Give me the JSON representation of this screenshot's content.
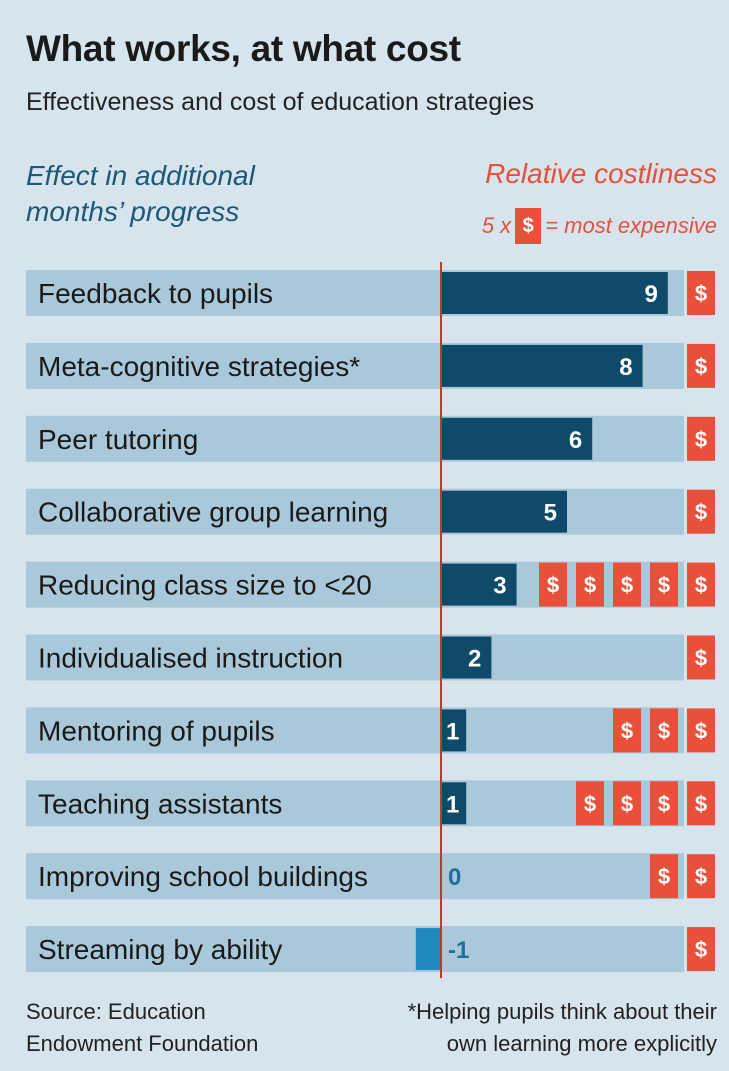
{
  "title": "What works, at what cost",
  "subtitle": "Effectiveness and cost of education strategies",
  "effect_header_line1": "Effect in additional",
  "effect_header_line2": "months’ progress",
  "cost_header": "Relative costliness",
  "cost_note": {
    "prefix": "5 x",
    "symbol": "$",
    "suffix": "= most expensive"
  },
  "source_line1": "Source: Education",
  "source_line2": "Endowment Foundation",
  "footnote_line1": "*Helping pupils think about their",
  "footnote_line2": "own learning more explicitly",
  "colors": {
    "background": "#d6e4ed",
    "row_band": "#a9c8d9",
    "positive_bar": "#0f4a6b",
    "negative_bar": "#1f8ac0",
    "cost_box": "#e8503a",
    "zero_line": "#c0392b"
  },
  "chart_data": {
    "type": "bar",
    "orientation": "horizontal",
    "categories": [
      "Feedback to pupils",
      "Meta-cognitive strategies*",
      "Peer tutoring",
      "Collaborative group learning",
      "Reducing class size to <20",
      "Individualised instruction",
      "Mentoring of pupils",
      "Teaching assistants",
      "Improving school buildings",
      "Streaming by ability"
    ],
    "values": [
      9,
      8,
      6,
      5,
      3,
      2,
      1,
      1,
      0,
      -1
    ],
    "value_labels": [
      "9",
      "8",
      "6",
      "5",
      "3",
      "2",
      "1",
      "1",
      "0",
      "-1"
    ],
    "costs": [
      1,
      1,
      1,
      1,
      5,
      1,
      3,
      4,
      2,
      1
    ],
    "cost_symbol": "$",
    "xlim": [
      -1,
      10
    ]
  }
}
